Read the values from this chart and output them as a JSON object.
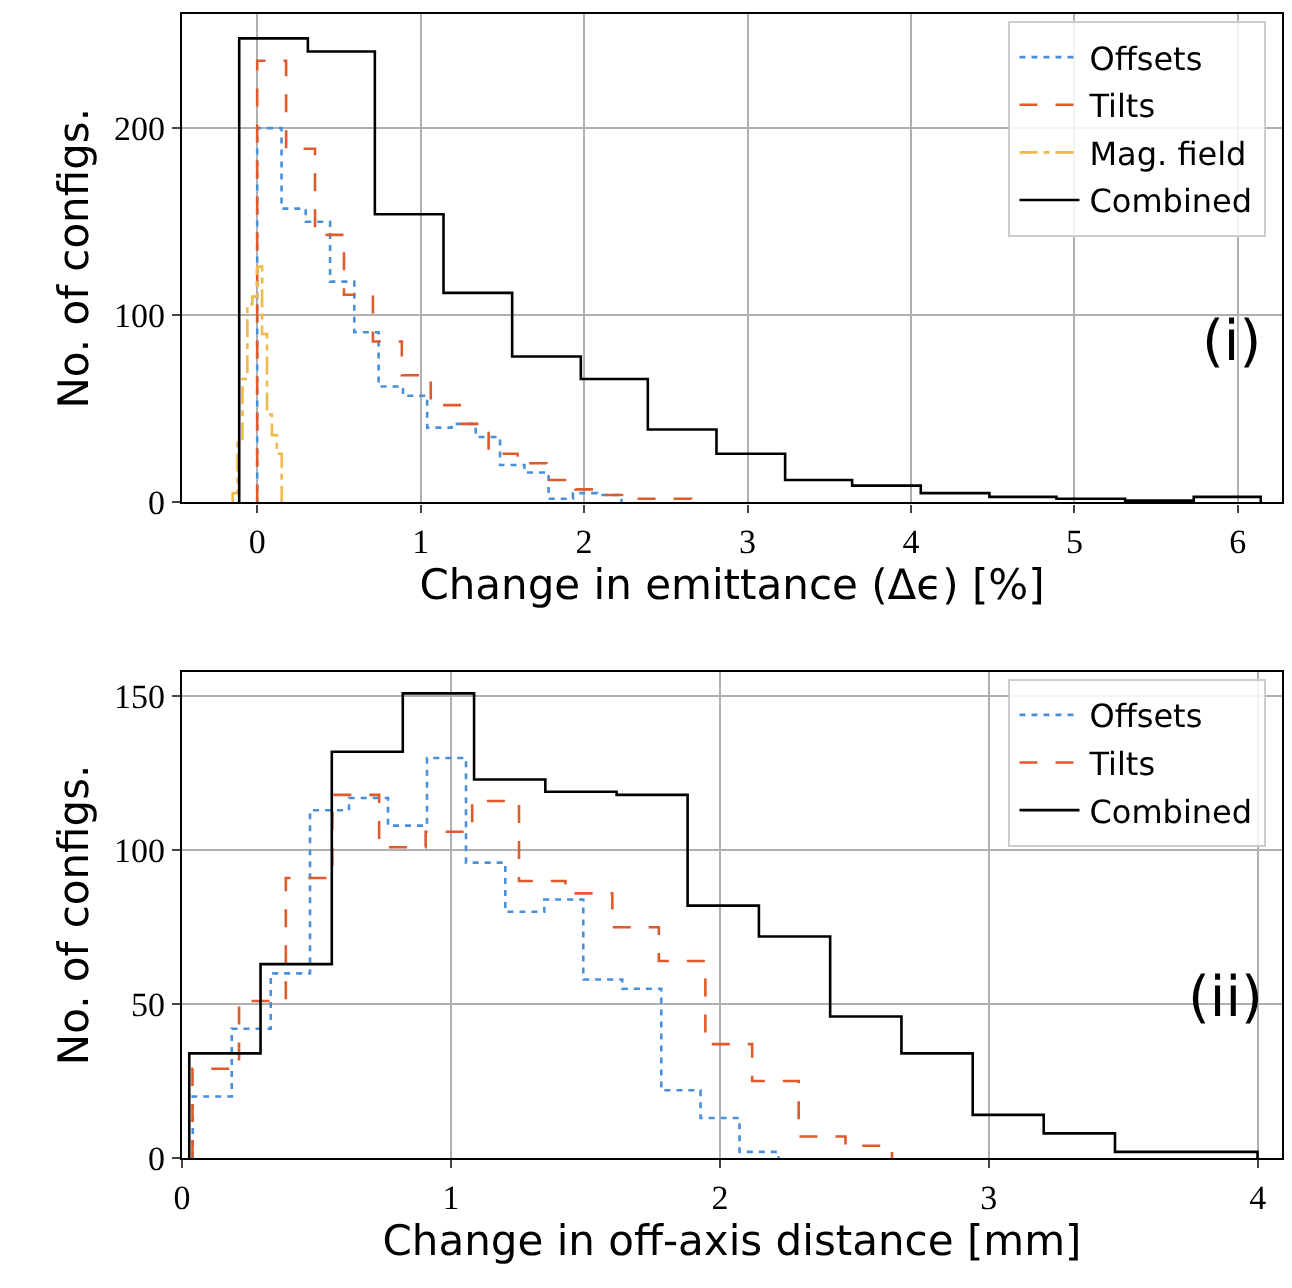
{
  "chart_data": [
    {
      "type": "step",
      "xlabel": "Change in emittance (Δϵ) [%]",
      "ylabel": "No. of configs.",
      "annotations": [
        "(i)"
      ],
      "xlim": [
        -0.46,
        6.27
      ],
      "ylim": [
        0,
        261
      ],
      "xticks": [
        0,
        1,
        2,
        3,
        4,
        5,
        6
      ],
      "yticks": [
        0,
        100,
        200
      ],
      "grid": true,
      "legend": "top right",
      "series": [
        {
          "name": "Offsets",
          "color": "#4a90d9",
          "line_style": "dotted",
          "x": [
            0,
            0,
            0.149,
            0.297,
            0.446,
            0.594,
            0.743,
            0.892,
            1.04,
            1.189,
            1.337,
            1.486,
            1.635,
            1.783,
            1.932,
            2.08,
            2.229
          ],
          "values": [
            0,
            200,
            157,
            150,
            118,
            91,
            62,
            57,
            40,
            42,
            35,
            20,
            16,
            2,
            5,
            4,
            0
          ]
        },
        {
          "name": "Tilts",
          "color": "#e05a2b",
          "line_style": "dashed",
          "x": [
            0,
            0,
            0.177,
            0.354,
            0.531,
            0.708,
            0.885,
            1.062,
            1.239,
            1.416,
            1.593,
            1.77,
            1.947,
            2.124,
            2.301,
            2.478,
            2.655
          ],
          "values": [
            0,
            236,
            189,
            143,
            111,
            86,
            68,
            52,
            42,
            26,
            21,
            12,
            7,
            4,
            2,
            2,
            0
          ]
        },
        {
          "name": "Mag. field",
          "color": "#f0b94a",
          "line_style": "dashdot",
          "x": [
            -0.15,
            -0.15,
            -0.12,
            -0.09,
            -0.06,
            -0.03,
            0,
            0.03,
            0.06,
            0.09,
            0.12,
            0.15
          ],
          "values": [
            0,
            5,
            33,
            66,
            106,
            110,
            126,
            90,
            47,
            36,
            26,
            0
          ]
        },
        {
          "name": "Combined",
          "color": "#000000",
          "line_style": "solid",
          "x": [
            -0.11,
            -0.11,
            0.31,
            0.72,
            1.14,
            1.56,
            1.98,
            2.39,
            2.81,
            3.23,
            3.64,
            4.06,
            4.48,
            4.89,
            5.31,
            5.73,
            6.14
          ],
          "values": [
            0,
            248,
            241,
            154,
            112,
            78,
            66,
            39,
            26,
            12,
            9,
            5,
            3,
            2,
            1,
            3,
            0
          ]
        }
      ]
    },
    {
      "type": "step",
      "xlabel": "Change in off-axis distance [mm]",
      "ylabel": "No. of configs.",
      "annotations": [
        "(ii)"
      ],
      "xlim": [
        0,
        4.09
      ],
      "ylim": [
        0,
        158
      ],
      "xticks": [
        0,
        1,
        2,
        3,
        4
      ],
      "yticks": [
        0,
        50,
        100,
        150
      ],
      "grid": true,
      "legend": "top right",
      "series": [
        {
          "name": "Offsets",
          "color": "#4a90d9",
          "line_style": "dotted",
          "x": [
            0.04,
            0.04,
            0.185,
            0.33,
            0.476,
            0.621,
            0.766,
            0.911,
            1.056,
            1.202,
            1.347,
            1.492,
            1.637,
            1.782,
            1.928,
            2.073,
            2.218
          ],
          "values": [
            0,
            20,
            42,
            60,
            113,
            117,
            108,
            130,
            96,
            80,
            84,
            58,
            55,
            22,
            13,
            2,
            0
          ]
        },
        {
          "name": "Tilts",
          "color": "#e05a2b",
          "line_style": "dashed",
          "x": [
            0.039,
            0.039,
            0.212,
            0.386,
            0.559,
            0.733,
            0.906,
            1.079,
            1.253,
            1.426,
            1.6,
            1.773,
            1.946,
            2.12,
            2.293,
            2.467,
            2.64
          ],
          "values": [
            0,
            29,
            51,
            91,
            118,
            101,
            106,
            116,
            90,
            86,
            75,
            64,
            37,
            25,
            7,
            4,
            0
          ]
        },
        {
          "name": "Combined",
          "color": "#000000",
          "line_style": "solid",
          "x": [
            0.027,
            0.027,
            0.292,
            0.557,
            0.821,
            1.086,
            1.351,
            1.616,
            1.88,
            2.145,
            2.41,
            2.675,
            2.94,
            3.204,
            3.469,
            3.734,
            3.999
          ],
          "values": [
            0,
            34,
            63,
            132,
            151,
            123,
            119,
            118,
            82,
            72,
            46,
            34,
            14,
            8,
            2,
            2,
            0
          ]
        }
      ]
    }
  ]
}
